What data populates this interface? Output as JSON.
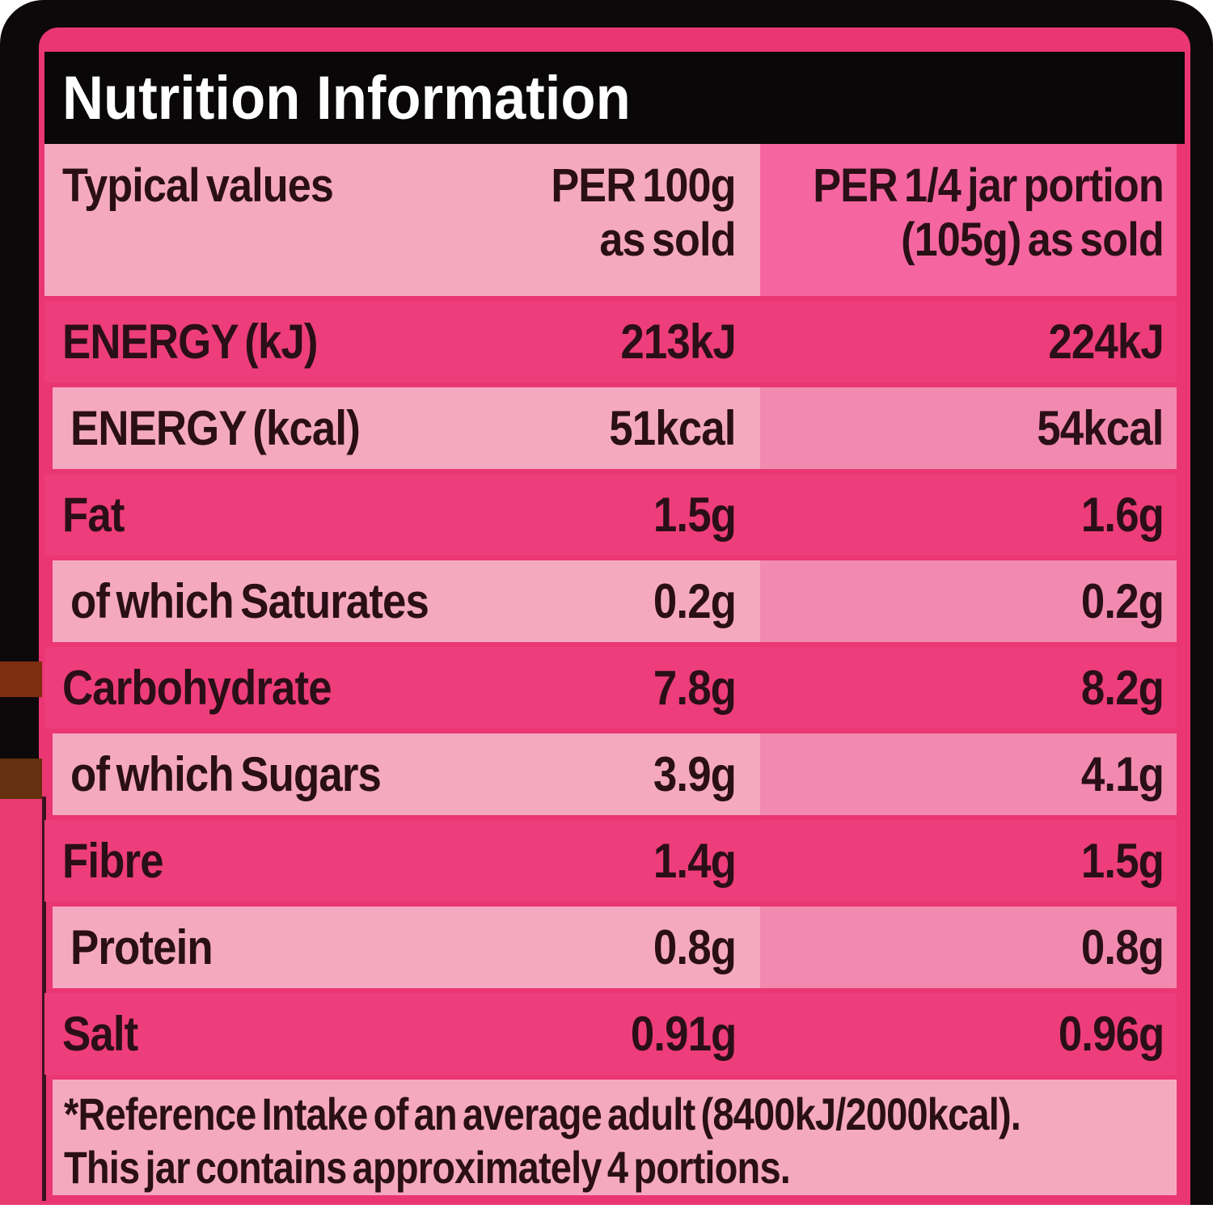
{
  "label": {
    "title": "Nutrition Information",
    "header": {
      "typical_values": "Typical values",
      "per_100g_line1": "PER 100g",
      "per_100g_line2": "as sold",
      "per_portion_line1": "PER 1/4 jar portion",
      "per_portion_line2": "(105g) as sold"
    },
    "rows": [
      {
        "name": "ENERGY (kJ)",
        "per_100g": "213kJ",
        "per_portion": "224kJ"
      },
      {
        "name": "ENERGY (kcal)",
        "per_100g": "51kcal",
        "per_portion": "54kcal"
      },
      {
        "name": "Fat",
        "per_100g": "1.5g",
        "per_portion": "1.6g"
      },
      {
        "name": "of which Saturates",
        "per_100g": "0.2g",
        "per_portion": "0.2g"
      },
      {
        "name": "Carbohydrate",
        "per_100g": "7.8g",
        "per_portion": "8.2g"
      },
      {
        "name": "of which Sugars",
        "per_100g": "3.9g",
        "per_portion": "4.1g"
      },
      {
        "name": "Fibre",
        "per_100g": "1.4g",
        "per_portion": "1.5g"
      },
      {
        "name": "Protein",
        "per_100g": "0.8g",
        "per_portion": "0.8g"
      },
      {
        "name": "Salt",
        "per_100g": "0.91g",
        "per_portion": "0.96g"
      }
    ],
    "footnote": {
      "line1": "*Reference Intake of an average adult (8400kJ/2000kcal).",
      "line2": "This jar contains approximately 4 portions."
    },
    "colors": {
      "frame_black": "#0d090b",
      "dark_pink_row": "#ee3d7b",
      "light_pink_row": "#f5a9c1",
      "light_row_col3": "#f28ab0",
      "header_col3": "#f566a0",
      "outer_edge_pink": "#ea3672",
      "text_dark": "#2a0f16",
      "title_white": "#ffffff",
      "brown_mark": "#7e2d10"
    }
  }
}
